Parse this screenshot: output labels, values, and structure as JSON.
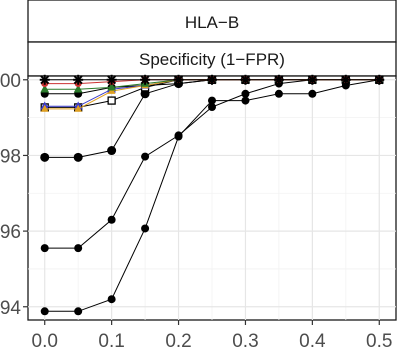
{
  "chart_data": {
    "type": "line",
    "strips": [
      "HLA−B",
      "Specificity (1−FPR)"
    ],
    "x_ticks": [
      "0.0",
      "0.1",
      "0.2",
      "0.3",
      "0.4",
      "0.5"
    ],
    "x_tick_values": [
      0.0,
      0.1,
      0.2,
      0.3,
      0.4,
      0.5
    ],
    "y_ticks": [
      ".00",
      ".98",
      ".96",
      ".94"
    ],
    "y_tick_values": [
      1.0,
      0.98,
      0.96,
      0.94
    ],
    "xlim": [
      -0.025,
      0.525
    ],
    "ylim": [
      0.9365,
      1.001
    ],
    "grid": true,
    "x": [
      0.0,
      0.05,
      0.1,
      0.15,
      0.2,
      0.25,
      0.3,
      0.35,
      0.4,
      0.45,
      0.5
    ],
    "series": [
      {
        "color": "#000000",
        "marker": "circle",
        "size": 4,
        "values": [
          0.9388,
          0.9388,
          0.942,
          0.9607,
          0.985,
          0.9945,
          0.9945,
          0.9963,
          0.9963,
          0.9985,
          1.0
        ]
      },
      {
        "color": "#000000",
        "marker": "circle",
        "size": 4,
        "values": [
          0.9555,
          0.9555,
          0.963,
          0.9797,
          0.9853,
          0.9928,
          0.9963,
          0.999,
          1.0,
          1.0,
          1.0
        ]
      },
      {
        "color": "#000000",
        "marker": "circle",
        "size": 4.5,
        "values": [
          0.9795,
          0.9795,
          0.9813,
          0.9963,
          0.999,
          1.0,
          1.0,
          1.0,
          1.0,
          1.0,
          1.0
        ]
      },
      {
        "color": "#000000",
        "marker": "circle",
        "size": 4,
        "values": [
          0.9963,
          0.9963,
          0.998,
          0.9985,
          0.999,
          1.0,
          1.0,
          1.0,
          1.0,
          1.0,
          1.0
        ]
      },
      {
        "color": "#000000",
        "marker": "square-open",
        "size": 3.5,
        "values": [
          0.9927,
          0.9927,
          0.9945,
          0.998,
          1.0,
          1.0,
          1.0,
          1.0,
          1.0,
          1.0,
          1.0
        ]
      },
      {
        "color": "#3b3bcc",
        "marker": "triangle",
        "size": 4,
        "values": [
          0.993,
          0.993,
          0.9975,
          0.9985,
          1.0,
          1.0,
          1.0,
          1.0,
          1.0,
          1.0,
          1.0
        ]
      },
      {
        "color": "#e0a020",
        "marker": "triangle",
        "size": 3.5,
        "values": [
          0.9923,
          0.9923,
          0.997,
          0.9985,
          1.0,
          1.0,
          1.0,
          1.0,
          1.0,
          1.0,
          1.0
        ]
      },
      {
        "color": "#2a7a2a",
        "marker": "triangle",
        "size": 4,
        "values": [
          0.9975,
          0.9975,
          0.998,
          0.999,
          1.0,
          1.0,
          1.0,
          1.0,
          1.0,
          1.0,
          1.0
        ]
      },
      {
        "color": "#cc3333",
        "marker": "circle",
        "size": 3.5,
        "values": [
          0.999,
          0.999,
          0.9995,
          1.0,
          1.0,
          1.0,
          1.0,
          1.0,
          1.0,
          1.0,
          1.0
        ]
      },
      {
        "color": "#000000",
        "marker": "star",
        "size": 5,
        "values": [
          1.0,
          1.0,
          1.0,
          1.0,
          1.0,
          1.0,
          1.0,
          1.0,
          1.0,
          1.0,
          1.0
        ]
      }
    ]
  }
}
